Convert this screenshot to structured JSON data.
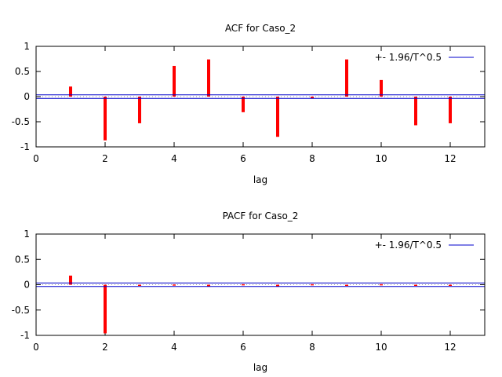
{
  "chart_data": [
    {
      "type": "bar",
      "title": "ACF for Caso_2",
      "xlabel": "lag",
      "ylabel": "",
      "xlim": [
        0,
        13
      ],
      "ylim": [
        -1,
        1
      ],
      "xticks": [
        "0",
        "2",
        "4",
        "6",
        "8",
        "10",
        "12"
      ],
      "yticks": [
        "1",
        "0.5",
        "0",
        "-0.5",
        "-1"
      ],
      "x": [
        1,
        2,
        3,
        4,
        5,
        6,
        7,
        8,
        9,
        10,
        11,
        12
      ],
      "values": [
        0.2,
        -0.87,
        -0.53,
        0.61,
        0.74,
        -0.31,
        -0.8,
        -0.04,
        0.74,
        0.33,
        -0.57,
        -0.53
      ],
      "band": 0.035,
      "legend": "+- 1.96/T^0.5",
      "legend_position": "top-right",
      "bar_color": "#ff0000",
      "band_color": "#0000cc"
    },
    {
      "type": "bar",
      "title": "PACF for Caso_2",
      "xlabel": "lag",
      "ylabel": "",
      "xlim": [
        0,
        13
      ],
      "ylim": [
        -1,
        1
      ],
      "xticks": [
        "0",
        "2",
        "4",
        "6",
        "8",
        "10",
        "12"
      ],
      "yticks": [
        "1",
        "0.5",
        "0",
        "-0.5",
        "-1"
      ],
      "x": [
        1,
        2,
        3,
        4,
        5,
        6,
        7,
        8,
        9,
        10,
        11,
        12
      ],
      "values": [
        0.18,
        -0.96,
        0.0,
        0.005,
        -0.04,
        0.01,
        -0.04,
        0.01,
        -0.02,
        0.01,
        -0.02,
        -0.02
      ],
      "band": 0.035,
      "legend": "+- 1.96/T^0.5",
      "legend_position": "top-right",
      "bar_color": "#ff0000",
      "band_color": "#0000cc"
    }
  ]
}
